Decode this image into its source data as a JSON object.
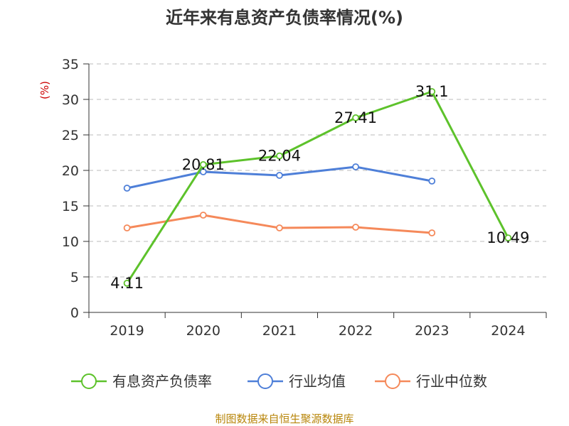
{
  "colors": {
    "series_main": "#5DC22B",
    "series_avg": "#4E7FD8",
    "series_median": "#F5895A",
    "ylabel": "#CC0000",
    "source": "#B8860B",
    "grid": "#bbbbbb",
    "axis": "#333333"
  },
  "source_text": "制图数据来自恒生聚源数据库",
  "chart_data": {
    "type": "line",
    "title": "近年来有息资产负债率情况(%)",
    "xlabel": "",
    "ylabel": "(%)",
    "categories": [
      "2019",
      "2020",
      "2021",
      "2022",
      "2023",
      "2024"
    ],
    "ylim": [
      0,
      35
    ],
    "yticks": [
      0,
      5,
      10,
      15,
      20,
      25,
      30,
      35
    ],
    "grid": "horizontal dashed",
    "legend_position": "bottom",
    "series": [
      {
        "name": "有息资产负债率",
        "values": [
          4.11,
          20.81,
          22.04,
          27.41,
          31.1,
          10.49
        ],
        "labels": [
          "4.11",
          "20.81",
          "22.04",
          "27.41",
          "31.1",
          "10.49"
        ]
      },
      {
        "name": "行业均值",
        "values": [
          17.5,
          19.8,
          19.3,
          20.5,
          18.5,
          null
        ]
      },
      {
        "name": "行业中位数",
        "values": [
          11.9,
          13.7,
          11.9,
          12.0,
          11.2,
          null
        ]
      }
    ]
  }
}
